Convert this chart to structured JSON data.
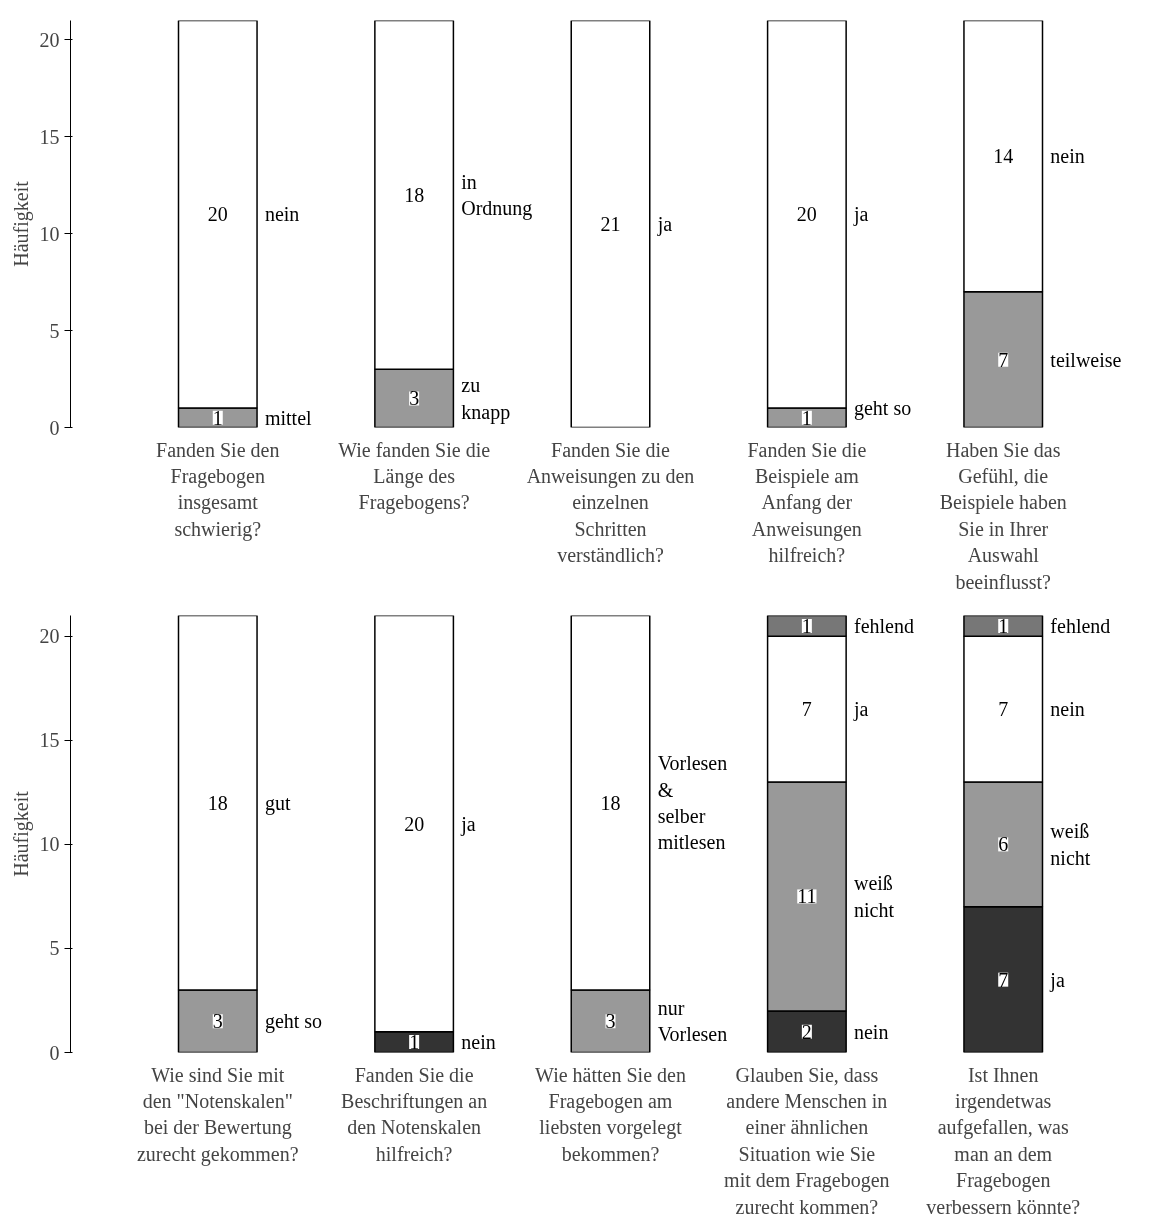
{
  "chart_data": [
    {
      "type": "bar",
      "stacked": true,
      "ylabel": "Häufigkeit",
      "ylim": [
        0,
        21
      ],
      "yticks": [
        0,
        5,
        10,
        15,
        20
      ],
      "data_labels": true,
      "categories": [
        "Fanden Sie den Fragebogen insgesamt schwierig?",
        "Wie fanden Sie die Länge des Fragebogens?",
        "Fanden Sie die Anweisungen zu den einzelnen Schritten verständlich?",
        "Fanden Sie die Beispiele am Anfang der Anweisungen hilfreich?",
        "Haben Sie das Gefühl, die Beispiele haben Sie in Ihrer Auswahl beeinflusst?"
      ],
      "series": [
        {
          "color": "#999999",
          "values": [
            1,
            3,
            null,
            1,
            7
          ]
        },
        {
          "color": "#ffffff",
          "values": [
            20,
            18,
            21,
            20,
            14
          ]
        }
      ],
      "annotations": [
        {
          "text": "nein",
          "x": "Fanden Sie den Fragebogen insgesamt schwierig?",
          "y": 11
        },
        {
          "text": "mittel",
          "x": "Fanden Sie den Fragebogen insgesamt schwierig?",
          "y": 0.5
        },
        {
          "text": "in Ordnung",
          "x": "Wie fanden Sie die Länge des Fragebogens?",
          "y": 12
        },
        {
          "text": "zu knapp",
          "x": "Wie fanden Sie die Länge des Fragebogens?",
          "y": 1.5
        },
        {
          "text": "ja",
          "x": "Fanden Sie die Anweisungen zu den einzelnen Schritten verständlich?",
          "y": 10.5
        },
        {
          "text": "ja",
          "x": "Fanden Sie die Beispiele am Anfang der Anweisungen hilfreich?",
          "y": 11
        },
        {
          "text": "geht so",
          "x": "Fanden Sie die Beispiele am Anfang der Anweisungen hilfreich?",
          "y": 1
        },
        {
          "text": "nein",
          "x": "Haben Sie das Gefühl, die Beispiele haben Sie in Ihrer Auswahl beeinflusst?",
          "y": 14
        },
        {
          "text": "teilweise",
          "x": "Haben Sie das Gefühl, die Beispiele haben Sie in Ihrer Auswahl beeinflusst?",
          "y": 3.5
        }
      ]
    },
    {
      "type": "bar",
      "stacked": true,
      "ylabel": "Häufigkeit",
      "ylim": [
        0,
        21
      ],
      "yticks": [
        0,
        5,
        10,
        15,
        20
      ],
      "data_labels": true,
      "categories": [
        "Wie sind Sie mit den \"Notenskalen\" bei der Bewertung zurecht gekommen?",
        "Fanden Sie die Beschriftungen an den Notenskalen hilfreich?",
        "Wie hätten Sie den Fragebogen am liebsten vorgelegt bekommen?",
        "Glauben Sie, dass andere Menschen in einer ähnlichen Situation wie Sie mit dem Fragebogen zurecht kommen?",
        "Ist Ihnen irgendetwas aufgefallen, was man an dem Fragebogen verbessern könnte?"
      ],
      "series": [
        {
          "color": "#333333",
          "values": [
            null,
            1,
            null,
            2,
            7
          ]
        },
        {
          "color": "#999999",
          "values": [
            3,
            null,
            3,
            11,
            6
          ]
        },
        {
          "color": "#ffffff",
          "values": [
            18,
            20,
            18,
            7,
            7
          ]
        },
        {
          "color": "#777777",
          "values": [
            null,
            null,
            null,
            1,
            1
          ]
        }
      ],
      "annotations": [
        {
          "text": "gut",
          "x": "Wie sind Sie mit den \"Notenskalen\" bei der Bewertung zurecht gekommen?",
          "y": 12
        },
        {
          "text": "geht so",
          "x": "Wie sind Sie mit den \"Notenskalen\" bei der Bewertung zurecht gekommen?",
          "y": 1.5
        },
        {
          "text": "ja",
          "x": "Fanden Sie die Beschriftungen an den Notenskalen hilfreich?",
          "y": 11
        },
        {
          "text": "nein",
          "x": "Fanden Sie die Beschriftungen an den Notenskalen hilfreich?",
          "y": 0.5
        },
        {
          "text": "Vorlesen & selber mitlesen",
          "x": "Wie hätten Sie den Fragebogen am liebsten vorgelegt bekommen?",
          "y": 12
        },
        {
          "text": "nur Vorlesen",
          "x": "Wie hätten Sie den Fragebogen am liebsten vorgelegt bekommen?",
          "y": 1.5
        },
        {
          "text": "fehlend",
          "x": "Glauben Sie, dass andere Menschen in einer ähnlichen Situation wie Sie mit dem Fragebogen zurecht kommen?",
          "y": 20.5
        },
        {
          "text": "ja",
          "x": "Glauben Sie, dass andere Menschen in einer ähnlichen Situation wie Sie mit dem Fragebogen zurecht kommen?",
          "y": 16.5
        },
        {
          "text": "weiß nicht",
          "x": "Glauben Sie, dass andere Menschen in einer ähnlichen Situation wie Sie mit dem Fragebogen zurecht kommen?",
          "y": 7.5
        },
        {
          "text": "nein",
          "x": "Glauben Sie, dass andere Menschen in einer ähnlichen Situation wie Sie mit dem Fragebogen zurecht kommen?",
          "y": 1
        },
        {
          "text": "fehlend",
          "x": "Ist Ihnen irgendetwas aufgefallen, was man an dem Fragebogen verbessern könnte?",
          "y": 20.5
        },
        {
          "text": "nein",
          "x": "Ist Ihnen irgendetwas aufgefallen, was man an dem Fragebogen verbessern könnte?",
          "y": 16.5
        },
        {
          "text": "weiß nicht",
          "x": "Ist Ihnen irgendetwas aufgefallen, was man an dem Fragebogen verbessern könnte?",
          "y": 10
        },
        {
          "text": "ja",
          "x": "Ist Ihnen irgendetwas aufgefallen, was man an dem Fragebogen verbessern könnte?",
          "y": 3.5
        }
      ]
    }
  ]
}
